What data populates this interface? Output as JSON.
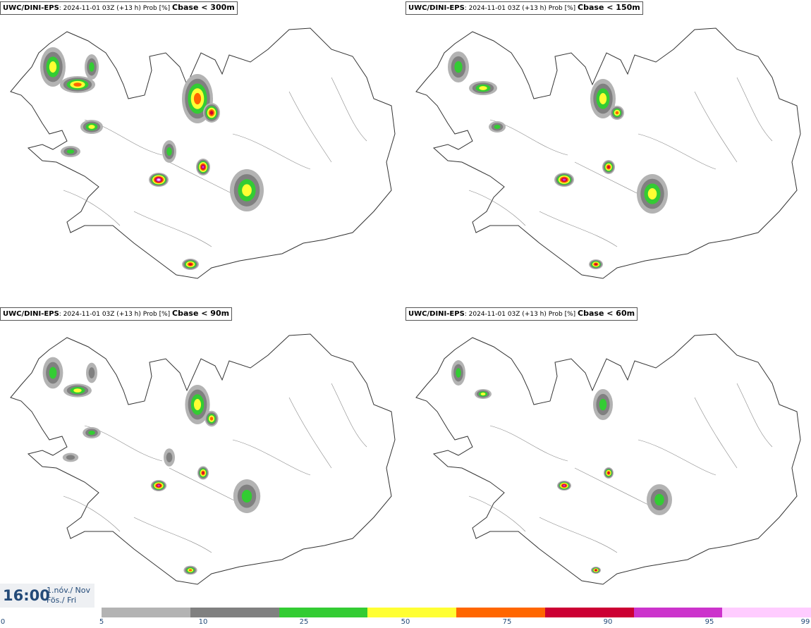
{
  "panels": [
    {
      "model": "UWC/DINI-EPS",
      "meta": ": 2024-11-01 03Z (+13 h) Prob [%] ",
      "threshold": "Cbase < 300m"
    },
    {
      "model": "UWC/DINI-EPS",
      "meta": ": 2024-11-01 03Z (+13 h) Prob [%] ",
      "threshold": "Cbase < 150m"
    },
    {
      "model": "UWC/DINI-EPS",
      "meta": ": 2024-11-01 03Z (+13 h) Prob [%] ",
      "threshold": "Cbase < 90m"
    },
    {
      "model": "UWC/DINI-EPS",
      "meta": ": 2024-11-01 03Z (+13 h) Prob [%] ",
      "threshold": "Cbase < 60m"
    }
  ],
  "clock": {
    "time": "16:00",
    "date_line1": "1.nóv./ Nov",
    "date_line2": "Fös./ Fri"
  },
  "legend": {
    "labels": [
      "0",
      "5",
      "10",
      "25",
      "50",
      "75",
      "90",
      "95",
      "99"
    ],
    "colors": [
      "#b3b3b3",
      "#808080",
      "#33cc33",
      "#ffff33",
      "#ff6600",
      "#cc0033",
      "#cc33cc",
      "#ffccff"
    ]
  },
  "map": {
    "region": "Iceland",
    "land_color": "#ffffff",
    "outline_color": "#333333"
  }
}
